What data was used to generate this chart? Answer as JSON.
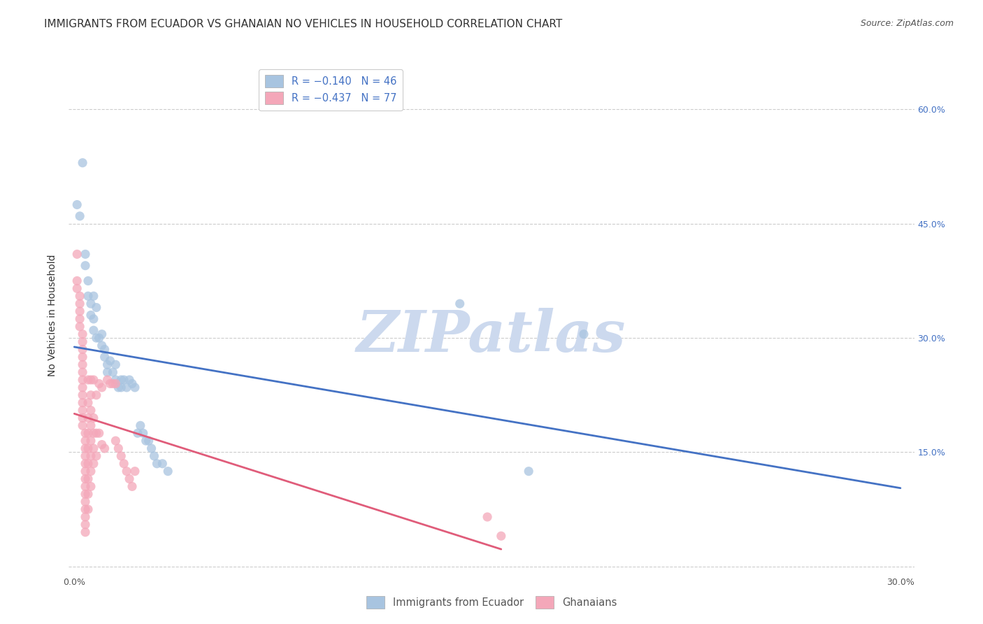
{
  "title": "IMMIGRANTS FROM ECUADOR VS GHANAIAN NO VEHICLES IN HOUSEHOLD CORRELATION CHART",
  "source": "Source: ZipAtlas.com",
  "ylabel": "No Vehicles in Household",
  "y_ticks": [
    0.0,
    0.15,
    0.3,
    0.45,
    0.6
  ],
  "y_tick_labels": [
    "",
    "15.0%",
    "30.0%",
    "45.0%",
    "60.0%"
  ],
  "x_lim": [
    -0.002,
    0.305
  ],
  "y_lim": [
    -0.01,
    0.67
  ],
  "legend_labels": [
    "Immigrants from Ecuador",
    "Ghanaians"
  ],
  "watermark": "ZIPatlas",
  "blue_scatter": [
    [
      0.001,
      0.475
    ],
    [
      0.002,
      0.46
    ],
    [
      0.003,
      0.53
    ],
    [
      0.004,
      0.41
    ],
    [
      0.004,
      0.395
    ],
    [
      0.005,
      0.375
    ],
    [
      0.005,
      0.355
    ],
    [
      0.006,
      0.345
    ],
    [
      0.006,
      0.33
    ],
    [
      0.007,
      0.355
    ],
    [
      0.007,
      0.325
    ],
    [
      0.007,
      0.31
    ],
    [
      0.008,
      0.34
    ],
    [
      0.008,
      0.3
    ],
    [
      0.009,
      0.3
    ],
    [
      0.01,
      0.305
    ],
    [
      0.01,
      0.29
    ],
    [
      0.011,
      0.285
    ],
    [
      0.011,
      0.275
    ],
    [
      0.012,
      0.265
    ],
    [
      0.012,
      0.255
    ],
    [
      0.013,
      0.27
    ],
    [
      0.014,
      0.255
    ],
    [
      0.015,
      0.265
    ],
    [
      0.015,
      0.245
    ],
    [
      0.016,
      0.235
    ],
    [
      0.017,
      0.245
    ],
    [
      0.017,
      0.235
    ],
    [
      0.018,
      0.245
    ],
    [
      0.019,
      0.235
    ],
    [
      0.02,
      0.245
    ],
    [
      0.021,
      0.24
    ],
    [
      0.022,
      0.235
    ],
    [
      0.023,
      0.175
    ],
    [
      0.024,
      0.185
    ],
    [
      0.025,
      0.175
    ],
    [
      0.026,
      0.165
    ],
    [
      0.027,
      0.165
    ],
    [
      0.028,
      0.155
    ],
    [
      0.029,
      0.145
    ],
    [
      0.03,
      0.135
    ],
    [
      0.032,
      0.135
    ],
    [
      0.034,
      0.125
    ],
    [
      0.14,
      0.345
    ],
    [
      0.165,
      0.125
    ],
    [
      0.185,
      0.305
    ]
  ],
  "pink_scatter": [
    [
      0.001,
      0.41
    ],
    [
      0.001,
      0.375
    ],
    [
      0.001,
      0.365
    ],
    [
      0.002,
      0.355
    ],
    [
      0.002,
      0.345
    ],
    [
      0.002,
      0.335
    ],
    [
      0.002,
      0.325
    ],
    [
      0.002,
      0.315
    ],
    [
      0.003,
      0.305
    ],
    [
      0.003,
      0.295
    ],
    [
      0.003,
      0.285
    ],
    [
      0.003,
      0.275
    ],
    [
      0.003,
      0.265
    ],
    [
      0.003,
      0.255
    ],
    [
      0.003,
      0.245
    ],
    [
      0.003,
      0.235
    ],
    [
      0.003,
      0.225
    ],
    [
      0.003,
      0.215
    ],
    [
      0.003,
      0.205
    ],
    [
      0.003,
      0.195
    ],
    [
      0.003,
      0.185
    ],
    [
      0.004,
      0.175
    ],
    [
      0.004,
      0.165
    ],
    [
      0.004,
      0.155
    ],
    [
      0.004,
      0.145
    ],
    [
      0.004,
      0.135
    ],
    [
      0.004,
      0.125
    ],
    [
      0.004,
      0.115
    ],
    [
      0.004,
      0.105
    ],
    [
      0.004,
      0.095
    ],
    [
      0.004,
      0.085
    ],
    [
      0.004,
      0.075
    ],
    [
      0.004,
      0.065
    ],
    [
      0.004,
      0.055
    ],
    [
      0.004,
      0.045
    ],
    [
      0.005,
      0.245
    ],
    [
      0.005,
      0.215
    ],
    [
      0.005,
      0.195
    ],
    [
      0.005,
      0.175
    ],
    [
      0.005,
      0.155
    ],
    [
      0.005,
      0.135
    ],
    [
      0.005,
      0.115
    ],
    [
      0.005,
      0.095
    ],
    [
      0.005,
      0.075
    ],
    [
      0.006,
      0.245
    ],
    [
      0.006,
      0.225
    ],
    [
      0.006,
      0.205
    ],
    [
      0.006,
      0.185
    ],
    [
      0.006,
      0.165
    ],
    [
      0.006,
      0.145
    ],
    [
      0.006,
      0.125
    ],
    [
      0.006,
      0.105
    ],
    [
      0.007,
      0.245
    ],
    [
      0.007,
      0.195
    ],
    [
      0.007,
      0.175
    ],
    [
      0.007,
      0.155
    ],
    [
      0.007,
      0.135
    ],
    [
      0.008,
      0.225
    ],
    [
      0.008,
      0.175
    ],
    [
      0.008,
      0.145
    ],
    [
      0.009,
      0.24
    ],
    [
      0.009,
      0.175
    ],
    [
      0.01,
      0.235
    ],
    [
      0.01,
      0.16
    ],
    [
      0.011,
      0.155
    ],
    [
      0.012,
      0.245
    ],
    [
      0.013,
      0.24
    ],
    [
      0.014,
      0.24
    ],
    [
      0.015,
      0.24
    ],
    [
      0.015,
      0.165
    ],
    [
      0.016,
      0.155
    ],
    [
      0.017,
      0.145
    ],
    [
      0.018,
      0.135
    ],
    [
      0.019,
      0.125
    ],
    [
      0.02,
      0.115
    ],
    [
      0.021,
      0.105
    ],
    [
      0.022,
      0.125
    ],
    [
      0.15,
      0.065
    ],
    [
      0.155,
      0.04
    ]
  ],
  "blue_line_color": "#4472c4",
  "pink_line_color": "#e05c7a",
  "scatter_blue_color": "#a8c4e0",
  "scatter_pink_color": "#f4a7b9",
  "scatter_alpha": 0.75,
  "scatter_size": 90,
  "grid_color": "#cccccc",
  "background_color": "#ffffff",
  "title_fontsize": 11,
  "axis_label_fontsize": 10,
  "tick_fontsize": 9,
  "source_fontsize": 9,
  "watermark_color": "#ccd9ee",
  "watermark_fontsize": 60
}
